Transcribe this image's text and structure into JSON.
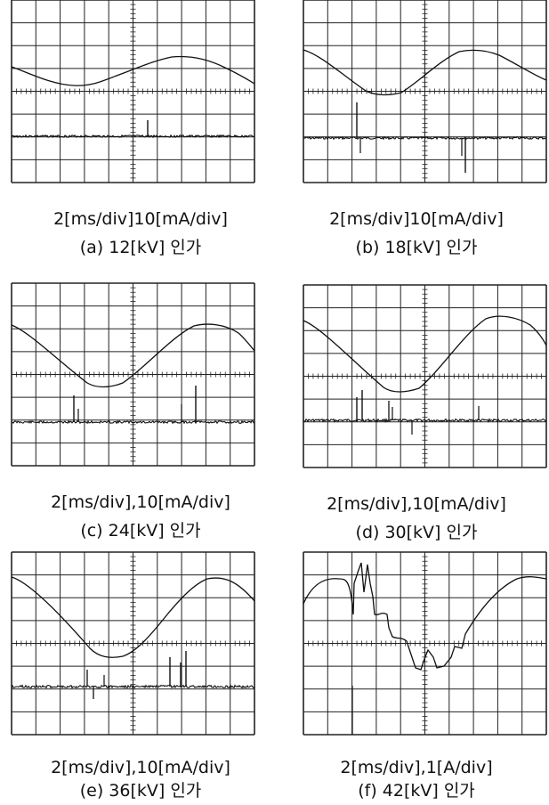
{
  "figure": {
    "panels": [
      {
        "id": "a",
        "scale": "2[ms/div]10[mA/div]",
        "caption": "(a) 12[kV] 인가"
      },
      {
        "id": "b",
        "scale": "2[ms/div]10[mA/div]",
        "caption": "(b) 18[kV] 인가"
      },
      {
        "id": "c",
        "scale": "2[ms/div],10[mA/div]",
        "caption": "(c) 24[kV] 인가"
      },
      {
        "id": "d",
        "scale": "2[ms/div],10[mA/div]",
        "caption": "(d) 30[kV] 인가"
      },
      {
        "id": "e",
        "scale": "2[ms/div],10[mA/div]",
        "caption": "(e) 36[kV] 인가"
      },
      {
        "id": "f",
        "scale": "2[ms/div],1[A/div]",
        "caption": "(f) 42[kV] 인가"
      }
    ]
  }
}
